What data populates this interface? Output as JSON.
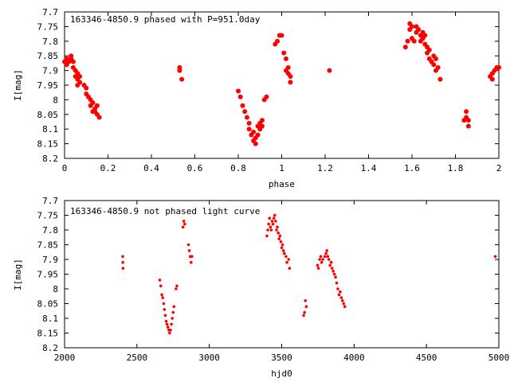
{
  "chart_data": [
    {
      "type": "scatter",
      "title": "163346-4850.9 phased with P=951.0day",
      "xlabel": "phase",
      "ylabel": "I[mag]",
      "xlim": [
        0,
        2
      ],
      "ylim": [
        8.2,
        7.7
      ],
      "y_inverted": true,
      "xticks": [
        0,
        0.2,
        0.4,
        0.6,
        0.8,
        1,
        1.2,
        1.4,
        1.6,
        1.8,
        2
      ],
      "xtick_labels": [
        "0",
        "0.2",
        "0.4",
        "0.6",
        "0.8",
        "1",
        "1.2",
        "1.4",
        "1.6",
        "1.8",
        "2"
      ],
      "yticks": [
        7.7,
        7.75,
        7.8,
        7.85,
        7.9,
        7.95,
        8,
        8.05,
        8.1,
        8.15,
        8.2
      ],
      "ytick_labels": [
        "7.7",
        "7.75",
        "7.8",
        "7.85",
        "7.9",
        "7.95",
        "8",
        "8.05",
        "8.1",
        "8.15",
        "8.2"
      ],
      "grid": false,
      "marker_color": "#ff0000",
      "marker_size": "large",
      "points": [
        [
          0.0,
          7.87
        ],
        [
          0.01,
          7.86
        ],
        [
          0.01,
          7.88
        ],
        [
          0.02,
          7.87
        ],
        [
          0.02,
          7.865
        ],
        [
          0.03,
          7.86
        ],
        [
          0.03,
          7.85
        ],
        [
          0.04,
          7.87
        ],
        [
          0.04,
          7.89
        ],
        [
          0.05,
          7.9
        ],
        [
          0.05,
          7.92
        ],
        [
          0.06,
          7.91
        ],
        [
          0.06,
          7.93
        ],
        [
          0.07,
          7.94
        ],
        [
          0.06,
          7.95
        ],
        [
          0.07,
          7.92
        ],
        [
          0.09,
          7.95
        ],
        [
          0.1,
          7.96
        ],
        [
          0.1,
          7.98
        ],
        [
          0.11,
          7.99
        ],
        [
          0.12,
          8.0
        ],
        [
          0.12,
          8.02
        ],
        [
          0.13,
          8.01
        ],
        [
          0.14,
          8.03
        ],
        [
          0.14,
          8.04
        ],
        [
          0.15,
          8.02
        ],
        [
          0.15,
          8.05
        ],
        [
          0.16,
          8.06
        ],
        [
          0.13,
          8.04
        ],
        [
          0.53,
          7.89
        ],
        [
          0.53,
          7.9
        ],
        [
          0.54,
          7.93
        ],
        [
          0.8,
          7.97
        ],
        [
          0.81,
          7.99
        ],
        [
          0.82,
          8.02
        ],
        [
          0.83,
          8.04
        ],
        [
          0.84,
          8.06
        ],
        [
          0.85,
          8.08
        ],
        [
          0.85,
          8.1
        ],
        [
          0.86,
          8.12
        ],
        [
          0.87,
          8.14
        ],
        [
          0.87,
          8.11
        ],
        [
          0.88,
          8.15
        ],
        [
          0.88,
          8.13
        ],
        [
          0.89,
          8.12
        ],
        [
          0.89,
          8.09
        ],
        [
          0.9,
          8.1
        ],
        [
          0.9,
          8.08
        ],
        [
          0.91,
          8.07
        ],
        [
          0.91,
          8.09
        ],
        [
          0.92,
          8.0
        ],
        [
          0.93,
          7.99
        ],
        [
          0.97,
          7.81
        ],
        [
          0.98,
          7.8
        ],
        [
          0.99,
          7.78
        ],
        [
          1.0,
          7.78
        ],
        [
          1.01,
          7.84
        ],
        [
          1.02,
          7.86
        ],
        [
          1.02,
          7.9
        ],
        [
          1.03,
          7.89
        ],
        [
          1.03,
          7.91
        ],
        [
          1.04,
          7.92
        ],
        [
          1.04,
          7.94
        ],
        [
          1.22,
          7.9
        ],
        [
          1.57,
          7.82
        ],
        [
          1.58,
          7.8
        ],
        [
          1.59,
          7.76
        ],
        [
          1.59,
          7.74
        ],
        [
          1.6,
          7.75
        ],
        [
          1.6,
          7.79
        ],
        [
          1.61,
          7.8
        ],
        [
          1.62,
          7.77
        ],
        [
          1.62,
          7.75
        ],
        [
          1.63,
          7.76
        ],
        [
          1.64,
          7.78
        ],
        [
          1.64,
          7.8
        ],
        [
          1.65,
          7.79
        ],
        [
          1.65,
          7.77
        ],
        [
          1.66,
          7.78
        ],
        [
          1.66,
          7.81
        ],
        [
          1.67,
          7.82
        ],
        [
          1.67,
          7.84
        ],
        [
          1.68,
          7.83
        ],
        [
          1.68,
          7.86
        ],
        [
          1.69,
          7.87
        ],
        [
          1.7,
          7.88
        ],
        [
          1.7,
          7.85
        ],
        [
          1.71,
          7.86
        ],
        [
          1.71,
          7.9
        ],
        [
          1.72,
          7.89
        ],
        [
          1.73,
          7.93
        ],
        [
          1.84,
          8.07
        ],
        [
          1.85,
          8.06
        ],
        [
          1.85,
          8.04
        ],
        [
          1.86,
          8.07
        ],
        [
          1.86,
          8.09
        ],
        [
          1.96,
          7.92
        ],
        [
          1.97,
          7.91
        ],
        [
          1.97,
          7.93
        ],
        [
          1.98,
          7.9
        ],
        [
          1.99,
          7.89
        ],
        [
          2.0,
          7.89
        ]
      ]
    },
    {
      "type": "scatter",
      "title": "163346-4850.9 not phased light curve",
      "xlabel": "hjd0",
      "ylabel": "I[mag]",
      "xlim": [
        2000,
        5000
      ],
      "ylim": [
        8.2,
        7.7
      ],
      "y_inverted": true,
      "xticks": [
        2000,
        2500,
        3000,
        3500,
        4000,
        4500,
        5000
      ],
      "xtick_labels": [
        "2000",
        "2500",
        "3000",
        "3500",
        "4000",
        "4500",
        "5000"
      ],
      "yticks": [
        7.7,
        7.75,
        7.8,
        7.85,
        7.9,
        7.95,
        8,
        8.05,
        8.1,
        8.15,
        8.2
      ],
      "ytick_labels": [
        "7.7",
        "7.75",
        "7.8",
        "7.85",
        "7.9",
        "7.95",
        "8",
        "8.05",
        "8.1",
        "8.15",
        "8.2"
      ],
      "grid": false,
      "marker_color": "#ff0000",
      "marker_size": "small",
      "points": [
        [
          2402,
          7.89
        ],
        [
          2403,
          7.91
        ],
        [
          2404,
          7.93
        ],
        [
          2658,
          7.97
        ],
        [
          2665,
          7.99
        ],
        [
          2672,
          8.02
        ],
        [
          2678,
          8.03
        ],
        [
          2685,
          8.05
        ],
        [
          2690,
          8.07
        ],
        [
          2696,
          8.09
        ],
        [
          2702,
          8.11
        ],
        [
          2708,
          8.12
        ],
        [
          2714,
          8.13
        ],
        [
          2720,
          8.14
        ],
        [
          2726,
          8.15
        ],
        [
          2732,
          8.14
        ],
        [
          2738,
          8.12
        ],
        [
          2744,
          8.1
        ],
        [
          2750,
          8.08
        ],
        [
          2756,
          8.06
        ],
        [
          2770,
          8.0
        ],
        [
          2776,
          7.99
        ],
        [
          2818,
          7.79
        ],
        [
          2824,
          7.77
        ],
        [
          2830,
          7.78
        ],
        [
          2856,
          7.85
        ],
        [
          2862,
          7.87
        ],
        [
          2868,
          7.89
        ],
        [
          2874,
          7.91
        ],
        [
          2880,
          7.89
        ],
        [
          3398,
          7.82
        ],
        [
          3404,
          7.8
        ],
        [
          3410,
          7.78
        ],
        [
          3416,
          7.76
        ],
        [
          3422,
          7.79
        ],
        [
          3428,
          7.8
        ],
        [
          3434,
          7.77
        ],
        [
          3440,
          7.78
        ],
        [
          3446,
          7.76
        ],
        [
          3452,
          7.75
        ],
        [
          3458,
          7.77
        ],
        [
          3464,
          7.8
        ],
        [
          3470,
          7.79
        ],
        [
          3476,
          7.81
        ],
        [
          3482,
          7.83
        ],
        [
          3488,
          7.82
        ],
        [
          3494,
          7.84
        ],
        [
          3500,
          7.86
        ],
        [
          3506,
          7.85
        ],
        [
          3512,
          7.87
        ],
        [
          3518,
          7.88
        ],
        [
          3530,
          7.89
        ],
        [
          3536,
          7.91
        ],
        [
          3548,
          7.9
        ],
        [
          3554,
          7.93
        ],
        [
          3652,
          8.09
        ],
        [
          3658,
          8.08
        ],
        [
          3664,
          8.04
        ],
        [
          3670,
          8.06
        ],
        [
          3748,
          7.92
        ],
        [
          3754,
          7.93
        ],
        [
          3762,
          7.9
        ],
        [
          3770,
          7.89
        ],
        [
          3776,
          7.91
        ],
        [
          3784,
          7.9
        ],
        [
          3798,
          7.89
        ],
        [
          3806,
          7.88
        ],
        [
          3812,
          7.87
        ],
        [
          3818,
          7.89
        ],
        [
          3826,
          7.9
        ],
        [
          3834,
          7.92
        ],
        [
          3842,
          7.91
        ],
        [
          3848,
          7.93
        ],
        [
          3856,
          7.94
        ],
        [
          3864,
          7.95
        ],
        [
          3872,
          7.96
        ],
        [
          3880,
          7.98
        ],
        [
          3888,
          8.0
        ],
        [
          3896,
          8.02
        ],
        [
          3904,
          8.01
        ],
        [
          3912,
          8.03
        ],
        [
          3920,
          8.04
        ],
        [
          3928,
          8.05
        ],
        [
          3936,
          8.06
        ],
        [
          4975,
          7.89
        ]
      ]
    }
  ]
}
